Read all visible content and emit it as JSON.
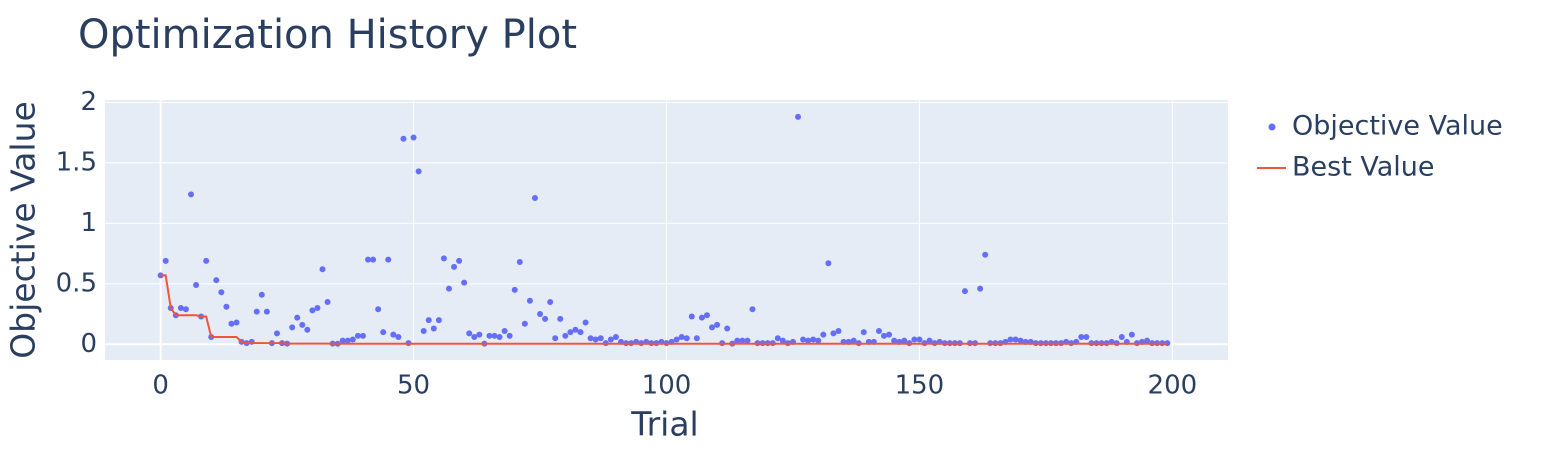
{
  "chart_data": {
    "type": "scatter",
    "title": "Optimization History Plot",
    "x_label": "Trial",
    "y_label": "Objective Value",
    "xlim": [
      -11,
      211
    ],
    "ylim": [
      -0.13,
      2.02
    ],
    "xticks": [
      0,
      50,
      100,
      150,
      200
    ],
    "yticks": [
      0,
      0.5,
      1,
      1.5,
      2
    ],
    "grid": true,
    "legend": "right",
    "x": [
      0,
      1,
      2,
      3,
      4,
      5,
      6,
      7,
      8,
      9,
      10,
      11,
      12,
      13,
      14,
      15,
      16,
      17,
      18,
      19,
      20,
      21,
      22,
      23,
      24,
      25,
      26,
      27,
      28,
      29,
      30,
      31,
      32,
      33,
      34,
      35,
      36,
      37,
      38,
      39,
      40,
      41,
      42,
      43,
      44,
      45,
      46,
      47,
      48,
      49,
      50,
      51,
      52,
      53,
      54,
      55,
      56,
      57,
      58,
      59,
      60,
      61,
      62,
      63,
      64,
      65,
      66,
      67,
      68,
      69,
      70,
      71,
      72,
      73,
      74,
      75,
      76,
      77,
      78,
      79,
      80,
      81,
      82,
      83,
      84,
      85,
      86,
      87,
      88,
      89,
      90,
      91,
      92,
      93,
      94,
      95,
      96,
      97,
      98,
      99,
      100,
      101,
      102,
      103,
      104,
      105,
      106,
      107,
      108,
      109,
      110,
      111,
      112,
      113,
      114,
      115,
      116,
      117,
      118,
      119,
      120,
      121,
      122,
      123,
      124,
      125,
      126,
      127,
      128,
      129,
      130,
      131,
      132,
      133,
      134,
      135,
      136,
      137,
      138,
      139,
      140,
      141,
      142,
      143,
      144,
      145,
      146,
      147,
      148,
      149,
      150,
      151,
      152,
      153,
      154,
      155,
      156,
      157,
      158,
      159,
      160,
      161,
      162,
      163,
      164,
      165,
      166,
      167,
      168,
      169,
      170,
      171,
      172,
      173,
      174,
      175,
      176,
      177,
      178,
      179,
      180,
      181,
      182,
      183,
      184,
      185,
      186,
      187,
      188,
      189,
      190,
      191,
      192,
      193,
      194,
      195,
      196,
      197,
      198,
      199
    ],
    "series": [
      {
        "name": "Objective Value",
        "color": "#636efa",
        "mode": "markers",
        "values": [
          0.57,
          0.69,
          0.3,
          0.24,
          0.3,
          0.29,
          1.24,
          0.49,
          0.23,
          0.69,
          0.06,
          0.53,
          0.43,
          0.31,
          0.17,
          0.18,
          0.02,
          0.01,
          0.02,
          0.27,
          0.41,
          0.27,
          0.01,
          0.09,
          0.01,
          0.005,
          0.14,
          0.22,
          0.16,
          0.12,
          0.28,
          0.3,
          0.62,
          0.35,
          0.005,
          0.004,
          0.03,
          0.03,
          0.04,
          0.07,
          0.07,
          0.7,
          0.7,
          0.29,
          0.1,
          0.7,
          0.08,
          0.06,
          1.7,
          0.01,
          1.71,
          1.43,
          0.11,
          0.2,
          0.13,
          0.2,
          0.71,
          0.46,
          0.64,
          0.69,
          0.51,
          0.09,
          0.06,
          0.08,
          0.005,
          0.07,
          0.07,
          0.06,
          0.11,
          0.07,
          0.45,
          0.68,
          0.17,
          0.36,
          1.21,
          0.25,
          0.21,
          0.35,
          0.05,
          0.21,
          0.07,
          0.1,
          0.12,
          0.1,
          0.18,
          0.05,
          0.04,
          0.05,
          0.01,
          0.04,
          0.06,
          0.02,
          0.01,
          0.01,
          0.02,
          0.01,
          0.02,
          0.01,
          0.01,
          0.02,
          0.01,
          0.02,
          0.04,
          0.06,
          0.05,
          0.23,
          0.05,
          0.22,
          0.24,
          0.14,
          0.16,
          0.01,
          0.13,
          0.005,
          0.03,
          0.03,
          0.03,
          0.29,
          0.01,
          0.01,
          0.01,
          0.01,
          0.05,
          0.03,
          0.01,
          0.02,
          1.88,
          0.04,
          0.03,
          0.04,
          0.03,
          0.08,
          0.67,
          0.09,
          0.11,
          0.02,
          0.02,
          0.03,
          0.01,
          0.1,
          0.02,
          0.02,
          0.11,
          0.07,
          0.08,
          0.03,
          0.02,
          0.03,
          0.01,
          0.04,
          0.04,
          0.01,
          0.03,
          0.01,
          0.02,
          0.01,
          0.01,
          0.01,
          0.01,
          0.44,
          0.01,
          0.01,
          0.46,
          0.74,
          0.01,
          0.01,
          0.01,
          0.02,
          0.04,
          0.04,
          0.03,
          0.02,
          0.02,
          0.01,
          0.01,
          0.01,
          0.01,
          0.01,
          0.01,
          0.02,
          0.01,
          0.02,
          0.06,
          0.06,
          0.01,
          0.01,
          0.01,
          0.01,
          0.02,
          0.01,
          0.06,
          0.02,
          0.08,
          0.01,
          0.02,
          0.03,
          0.01,
          0.01,
          0.01,
          0.01
        ]
      },
      {
        "name": "Best Value",
        "color": "#ef553b",
        "mode": "lines",
        "values": [
          0.57,
          0.57,
          0.3,
          0.24,
          0.24,
          0.24,
          0.24,
          0.24,
          0.23,
          0.23,
          0.06,
          0.06,
          0.06,
          0.06,
          0.06,
          0.06,
          0.02,
          0.01,
          0.01,
          0.01,
          0.01,
          0.01,
          0.01,
          0.01,
          0.01,
          0.005,
          0.005,
          0.005,
          0.005,
          0.005,
          0.005,
          0.005,
          0.005,
          0.005,
          0.005,
          0.004,
          0.004,
          0.004,
          0.004,
          0.004,
          0.004,
          0.004,
          0.004,
          0.004,
          0.004,
          0.004,
          0.004,
          0.004,
          0.004,
          0.004,
          0.004,
          0.004,
          0.004,
          0.004,
          0.004,
          0.004,
          0.004,
          0.004,
          0.004,
          0.004,
          0.004,
          0.004,
          0.004,
          0.004,
          0.004,
          0.004,
          0.004,
          0.004,
          0.004,
          0.004,
          0.004,
          0.004,
          0.004,
          0.004,
          0.004,
          0.004,
          0.004,
          0.004,
          0.004,
          0.004,
          0.004,
          0.004,
          0.004,
          0.004,
          0.004,
          0.004,
          0.004,
          0.004,
          0.004,
          0.004,
          0.004,
          0.004,
          0.004,
          0.004,
          0.004,
          0.004,
          0.004,
          0.004,
          0.004,
          0.004,
          0.004,
          0.004,
          0.004,
          0.004,
          0.004,
          0.004,
          0.004,
          0.004,
          0.004,
          0.004,
          0.004,
          0.004,
          0.004,
          0.004,
          0.004,
          0.004,
          0.004,
          0.004,
          0.004,
          0.004,
          0.004,
          0.004,
          0.004,
          0.004,
          0.004,
          0.004,
          0.004,
          0.004,
          0.004,
          0.004,
          0.004,
          0.004,
          0.004,
          0.004,
          0.004,
          0.004,
          0.004,
          0.004,
          0.004,
          0.004,
          0.004,
          0.004,
          0.004,
          0.004,
          0.004,
          0.004,
          0.004,
          0.004,
          0.004,
          0.004,
          0.004,
          0.004,
          0.004,
          0.004,
          0.004,
          0.004,
          0.004,
          0.004,
          0.004,
          0.004,
          0.004,
          0.004,
          0.004,
          0.004,
          0.004,
          0.004,
          0.004,
          0.004,
          0.004,
          0.004,
          0.004,
          0.004,
          0.004,
          0.004,
          0.004,
          0.004,
          0.004,
          0.004,
          0.004,
          0.004,
          0.004,
          0.004,
          0.004,
          0.004,
          0.004,
          0.004,
          0.004,
          0.004,
          0.004,
          0.004,
          0.004,
          0.004,
          0.004,
          0.004,
          0.004,
          0.004,
          0.004,
          0.004,
          0.004,
          0.004
        ]
      }
    ]
  }
}
